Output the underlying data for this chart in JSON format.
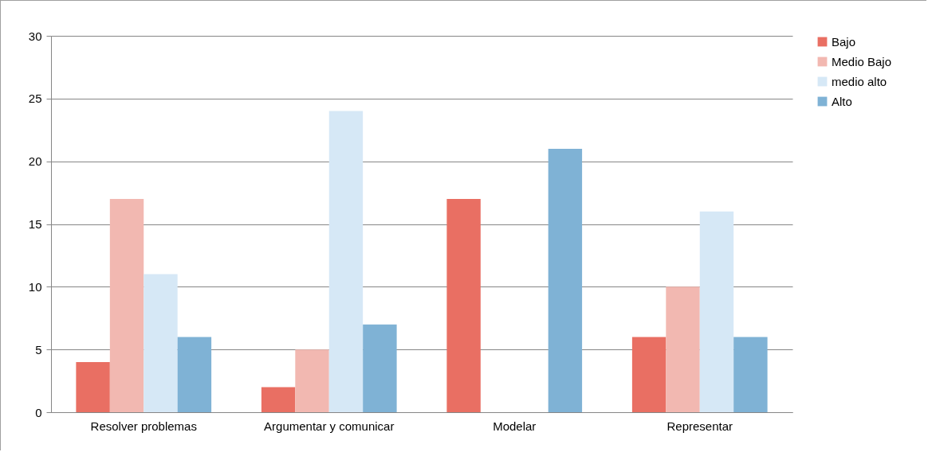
{
  "chart_data": {
    "type": "bar",
    "categories": [
      "Resolver problemas",
      "Argumentar y comunicar",
      "Modelar",
      "Representar"
    ],
    "series": [
      {
        "name": "Bajo",
        "color": "#e96f63",
        "values": [
          4,
          2,
          17,
          6
        ]
      },
      {
        "name": "Medio Bajo",
        "color": "#f2b8b1",
        "values": [
          17,
          5,
          null,
          10
        ]
      },
      {
        "name": "medio alto",
        "color": "#d6e8f6",
        "values": [
          11,
          24,
          null,
          16
        ]
      },
      {
        "name": "Alto",
        "color": "#7fb2d5",
        "values": [
          6,
          7,
          21,
          6
        ]
      }
    ],
    "ylim": [
      0,
      30
    ],
    "yticks": [
      0,
      5,
      10,
      15,
      20,
      25,
      30
    ],
    "grid": "y",
    "legend": "right"
  }
}
